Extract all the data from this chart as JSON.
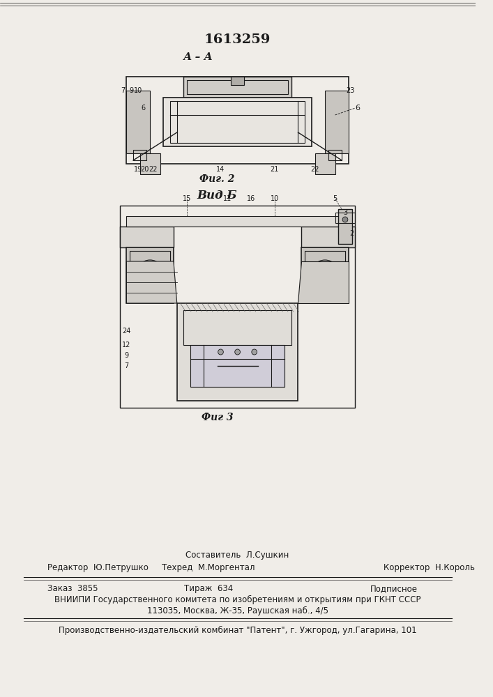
{
  "patent_number": "1613259",
  "fig2_label": "А – А",
  "fig2_caption": "Фиг. 2",
  "vidb_label": "Вид Б",
  "fig3_caption": "Фиг 3",
  "footer_sestavitel": "Составитель  Л.Сушкин",
  "footer_redaktor": "Редактор  Ю.Петрушко",
  "footer_tehred": "Техред  М.Моргентал",
  "footer_korrektor": "Корректор  Н.Король",
  "footer_zakaz": "Заказ  3855",
  "footer_tirazh": "Тираж  634",
  "footer_podpisnoe": "Подписное",
  "footer_vniiipi": "ВНИИПИ Государственного комитета по изобретениям и открытиям при ГКНТ СССР",
  "footer_address": "113035, Москва, Ж-35, Раушская наб., 4/5",
  "footer_publisher": "Производственно-издательский комбинат \"Патент\", г. Ужгород, ул.Гагарина, 101",
  "bg_color": "#f0ede8",
  "line_color": "#1a1a1a",
  "text_color": "#1a1a1a"
}
